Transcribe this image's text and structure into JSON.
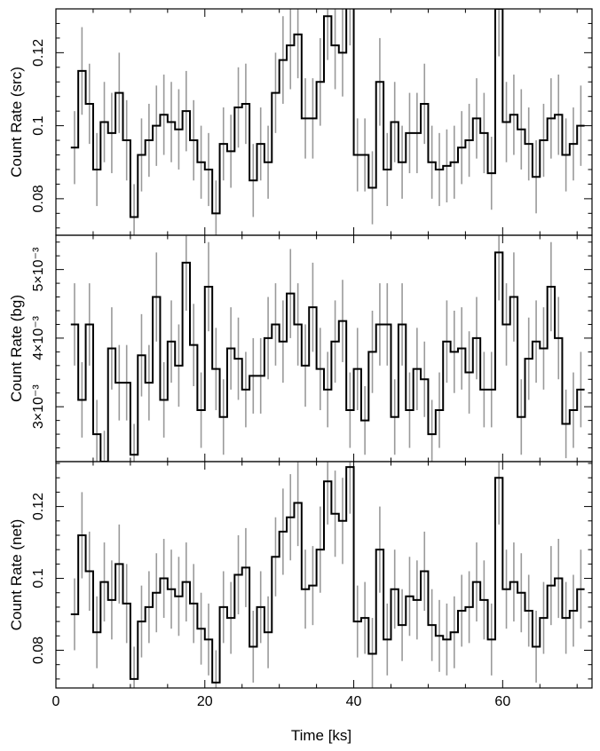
{
  "chart_data": {
    "type": "line",
    "xlabel": "Time [ks]",
    "xlim": [
      0,
      72
    ],
    "x_ticks": [
      0,
      20,
      40,
      60
    ],
    "bin_width": 1.0,
    "colors": {
      "step": "#000000",
      "errorbar": "#9a9a9a",
      "frame": "#000000"
    },
    "panels": [
      {
        "name": "src",
        "ylabel": "Count Rate (src)",
        "ylim": [
          0.07,
          0.132
        ],
        "y_ticks": [
          {
            "value": 0.08,
            "label": "0.08"
          },
          {
            "value": 0.1,
            "label": "0.1"
          },
          {
            "value": 0.12,
            "label": "0.12"
          }
        ],
        "x": [
          2.5,
          3.5,
          4.5,
          5.5,
          6.5,
          7.5,
          8.5,
          9.5,
          10.5,
          11.5,
          12.5,
          13.5,
          14.5,
          15.5,
          16.5,
          17.5,
          18.5,
          19.5,
          20.5,
          21.5,
          22.5,
          23.5,
          24.5,
          25.5,
          26.5,
          27.5,
          28.5,
          29.5,
          30.5,
          31.5,
          32.5,
          33.5,
          34.5,
          35.5,
          36.5,
          37.5,
          38.5,
          39.5,
          40.5,
          41.5,
          42.5,
          43.5,
          44.5,
          45.5,
          46.5,
          47.5,
          48.5,
          49.5,
          50.5,
          51.5,
          52.5,
          53.5,
          54.5,
          55.5,
          56.5,
          57.5,
          58.5,
          59.5,
          60.5,
          61.5,
          62.5,
          63.5,
          64.5,
          65.5,
          66.5,
          67.5,
          68.5,
          69.5,
          70.5
        ],
        "values": [
          0.094,
          0.115,
          0.106,
          0.088,
          0.101,
          0.098,
          0.109,
          0.096,
          0.075,
          0.092,
          0.096,
          0.1,
          0.103,
          0.101,
          0.099,
          0.104,
          0.096,
          0.09,
          0.088,
          0.076,
          0.095,
          0.093,
          0.105,
          0.106,
          0.085,
          0.095,
          0.09,
          0.109,
          0.118,
          0.122,
          0.125,
          0.102,
          0.102,
          0.112,
          0.13,
          0.122,
          0.12,
          0.135,
          0.092,
          0.092,
          0.083,
          0.112,
          0.088,
          0.101,
          0.09,
          0.098,
          0.098,
          0.106,
          0.09,
          0.088,
          0.089,
          0.09,
          0.094,
          0.096,
          0.102,
          0.098,
          0.087,
          0.132,
          0.101,
          0.103,
          0.099,
          0.095,
          0.086,
          0.096,
          0.102,
          0.103,
          0.092,
          0.095,
          0.1
        ],
        "errors": [
          0.01,
          0.012,
          0.011,
          0.01,
          0.011,
          0.011,
          0.011,
          0.011,
          0.009,
          0.01,
          0.01,
          0.011,
          0.011,
          0.011,
          0.011,
          0.011,
          0.011,
          0.01,
          0.01,
          0.009,
          0.01,
          0.01,
          0.011,
          0.011,
          0.01,
          0.01,
          0.01,
          0.011,
          0.012,
          0.012,
          0.012,
          0.011,
          0.011,
          0.012,
          0.012,
          0.012,
          0.012,
          0.013,
          0.01,
          0.01,
          0.01,
          0.012,
          0.01,
          0.011,
          0.01,
          0.011,
          0.011,
          0.011,
          0.01,
          0.01,
          0.01,
          0.01,
          0.01,
          0.01,
          0.011,
          0.011,
          0.01,
          0.013,
          0.011,
          0.011,
          0.011,
          0.01,
          0.01,
          0.01,
          0.011,
          0.011,
          0.01,
          0.01,
          0.011
        ]
      },
      {
        "name": "bg",
        "ylabel": "Count Rate (bg)",
        "ylim": [
          0.0022,
          0.0055
        ],
        "y_ticks": [
          {
            "value": 0.003,
            "label": "3×10⁻³"
          },
          {
            "value": 0.004,
            "label": "4×10⁻³"
          },
          {
            "value": 0.005,
            "label": "5×10⁻³"
          }
        ],
        "x": [
          2.5,
          3.5,
          4.5,
          5.5,
          6.5,
          7.5,
          8.5,
          9.5,
          10.5,
          11.5,
          12.5,
          13.5,
          14.5,
          15.5,
          16.5,
          17.5,
          18.5,
          19.5,
          20.5,
          21.5,
          22.5,
          23.5,
          24.5,
          25.5,
          26.5,
          27.5,
          28.5,
          29.5,
          30.5,
          31.5,
          32.5,
          33.5,
          34.5,
          35.5,
          36.5,
          37.5,
          38.5,
          39.5,
          40.5,
          41.5,
          42.5,
          43.5,
          44.5,
          45.5,
          46.5,
          47.5,
          48.5,
          49.5,
          50.5,
          51.5,
          52.5,
          53.5,
          54.5,
          55.5,
          56.5,
          57.5,
          58.5,
          59.5,
          60.5,
          61.5,
          62.5,
          63.5,
          64.5,
          65.5,
          66.5,
          67.5,
          68.5,
          69.5,
          70.5
        ],
        "values": [
          0.0042,
          0.0031,
          0.0042,
          0.0026,
          0.0022,
          0.00385,
          0.00335,
          0.00335,
          0.0023,
          0.00375,
          0.00335,
          0.0046,
          0.0031,
          0.00395,
          0.0036,
          0.0051,
          0.0039,
          0.00295,
          0.00475,
          0.00355,
          0.00285,
          0.00385,
          0.0037,
          0.00325,
          0.00345,
          0.00345,
          0.004,
          0.0042,
          0.00395,
          0.00465,
          0.0042,
          0.0036,
          0.00445,
          0.00355,
          0.00325,
          0.00395,
          0.00425,
          0.00295,
          0.00355,
          0.0028,
          0.0038,
          0.0042,
          0.0042,
          0.00285,
          0.0042,
          0.00295,
          0.00355,
          0.0034,
          0.0026,
          0.00295,
          0.00395,
          0.0038,
          0.00385,
          0.0035,
          0.004,
          0.00325,
          0.00325,
          0.00525,
          0.0042,
          0.0046,
          0.00285,
          0.0037,
          0.00395,
          0.00385,
          0.00475,
          0.004,
          0.00275,
          0.00295,
          0.00325
        ],
        "errors": [
          0.0006,
          0.00055,
          0.0006,
          0.0005,
          0.00045,
          0.0006,
          0.00055,
          0.00055,
          0.00045,
          0.0006,
          0.00055,
          0.00065,
          0.00055,
          0.0006,
          0.0006,
          0.0007,
          0.0006,
          0.00055,
          0.00065,
          0.0006,
          0.00055,
          0.0006,
          0.0006,
          0.00055,
          0.00055,
          0.00055,
          0.0006,
          0.0006,
          0.0006,
          0.00065,
          0.0006,
          0.0006,
          0.00065,
          0.0006,
          0.00055,
          0.0006,
          0.0006,
          0.00055,
          0.0006,
          0.0005,
          0.0006,
          0.0006,
          0.0006,
          0.00055,
          0.0006,
          0.00055,
          0.0006,
          0.00055,
          0.0005,
          0.00055,
          0.0006,
          0.0006,
          0.0006,
          0.0006,
          0.0006,
          0.00055,
          0.00055,
          0.0007,
          0.0006,
          0.00065,
          0.00055,
          0.0006,
          0.0006,
          0.0006,
          0.00065,
          0.0006,
          0.0005,
          0.00055,
          0.00055
        ]
      },
      {
        "name": "net",
        "ylabel": "Count Rate (net)",
        "ylim": [
          0.0695,
          0.1325
        ],
        "y_ticks": [
          {
            "value": 0.08,
            "label": "0.08"
          },
          {
            "value": 0.1,
            "label": "0.1"
          },
          {
            "value": 0.12,
            "label": "0.12"
          }
        ],
        "x": [
          2.5,
          3.5,
          4.5,
          5.5,
          6.5,
          7.5,
          8.5,
          9.5,
          10.5,
          11.5,
          12.5,
          13.5,
          14.5,
          15.5,
          16.5,
          17.5,
          18.5,
          19.5,
          20.5,
          21.5,
          22.5,
          23.5,
          24.5,
          25.5,
          26.5,
          27.5,
          28.5,
          29.5,
          30.5,
          31.5,
          32.5,
          33.5,
          34.5,
          35.5,
          36.5,
          37.5,
          38.5,
          39.5,
          40.5,
          41.5,
          42.5,
          43.5,
          44.5,
          45.5,
          46.5,
          47.5,
          48.5,
          49.5,
          50.5,
          51.5,
          52.5,
          53.5,
          54.5,
          55.5,
          56.5,
          57.5,
          58.5,
          59.5,
          60.5,
          61.5,
          62.5,
          63.5,
          64.5,
          65.5,
          66.5,
          67.5,
          68.5,
          69.5,
          70.5
        ],
        "values": [
          0.09,
          0.112,
          0.102,
          0.085,
          0.099,
          0.094,
          0.104,
          0.093,
          0.072,
          0.088,
          0.092,
          0.096,
          0.1,
          0.097,
          0.095,
          0.099,
          0.093,
          0.086,
          0.083,
          0.071,
          0.092,
          0.089,
          0.101,
          0.103,
          0.081,
          0.092,
          0.085,
          0.106,
          0.113,
          0.117,
          0.121,
          0.097,
          0.098,
          0.108,
          0.127,
          0.118,
          0.116,
          0.131,
          0.088,
          0.089,
          0.079,
          0.108,
          0.083,
          0.097,
          0.087,
          0.095,
          0.094,
          0.102,
          0.087,
          0.084,
          0.083,
          0.085,
          0.091,
          0.092,
          0.099,
          0.094,
          0.083,
          0.128,
          0.097,
          0.099,
          0.096,
          0.091,
          0.081,
          0.089,
          0.098,
          0.1,
          0.089,
          0.091,
          0.097
        ],
        "errors": [
          0.01,
          0.012,
          0.011,
          0.01,
          0.011,
          0.011,
          0.011,
          0.011,
          0.009,
          0.01,
          0.01,
          0.011,
          0.011,
          0.011,
          0.011,
          0.011,
          0.011,
          0.01,
          0.01,
          0.009,
          0.01,
          0.01,
          0.011,
          0.011,
          0.01,
          0.01,
          0.01,
          0.011,
          0.012,
          0.012,
          0.012,
          0.011,
          0.011,
          0.012,
          0.012,
          0.012,
          0.012,
          0.013,
          0.01,
          0.01,
          0.01,
          0.012,
          0.01,
          0.011,
          0.01,
          0.011,
          0.011,
          0.011,
          0.01,
          0.01,
          0.01,
          0.01,
          0.01,
          0.01,
          0.011,
          0.011,
          0.01,
          0.013,
          0.011,
          0.011,
          0.011,
          0.01,
          0.01,
          0.01,
          0.011,
          0.011,
          0.01,
          0.01,
          0.011
        ]
      }
    ]
  }
}
